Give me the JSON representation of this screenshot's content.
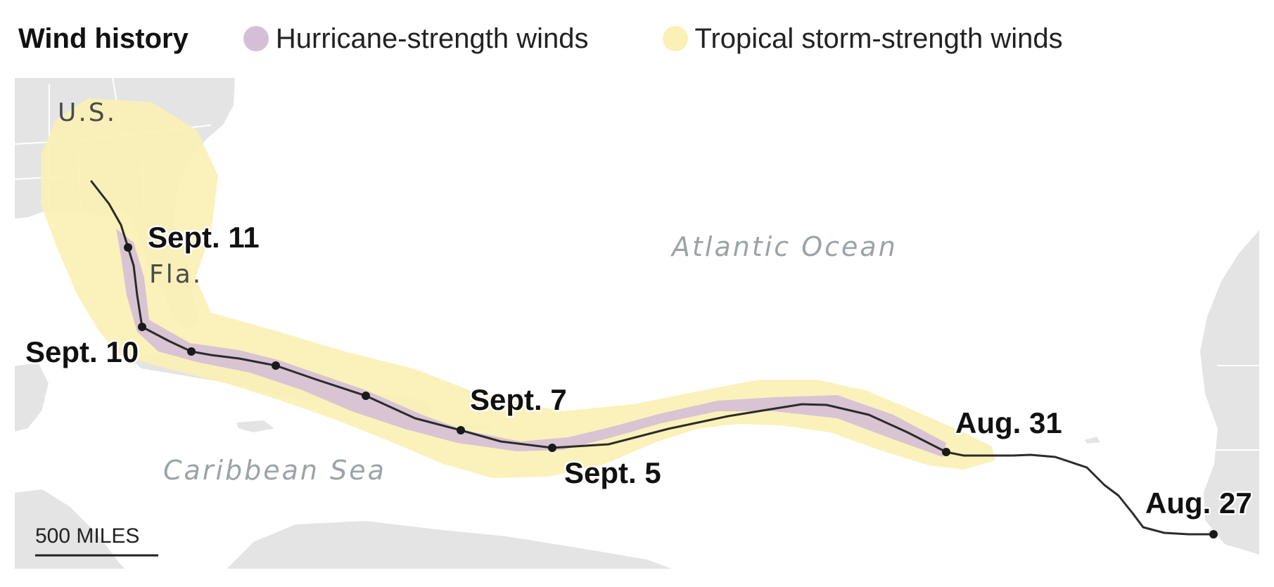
{
  "legend": {
    "title": "Wind history",
    "items": [
      {
        "label": "Hurricane-strength winds",
        "color": "#d4bfd6"
      },
      {
        "label": "Tropical storm-strength winds",
        "color": "#fbf0b5"
      }
    ]
  },
  "regions": {
    "us": "U.S.",
    "florida": "Fla.",
    "atlantic": "Atlantic Ocean",
    "caribbean": "Caribbean Sea"
  },
  "dates": {
    "sept11": "Sept. 11",
    "sept10": "Sept. 10",
    "sept7": "Sept. 7",
    "sept5": "Sept. 5",
    "aug31": "Aug. 31",
    "aug27": "Aug. 27"
  },
  "scale_bar": {
    "label": "500 MILES"
  },
  "colors": {
    "land": "#e4e4e4",
    "land_border": "#ffffff",
    "track": "#2b2b2b",
    "hurricane": "#d4bfd6",
    "tropical": "#fbf0b5"
  }
}
